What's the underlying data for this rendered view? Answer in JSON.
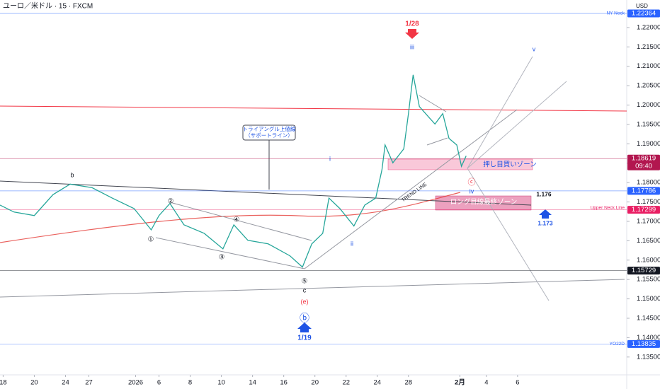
{
  "header": {
    "symbol": "ユーロ／米ドル · 15 · FXCM",
    "currency": "USD"
  },
  "chart_data": {
    "type": "line",
    "color": "#26a69a",
    "grid": false,
    "x": [
      -0.2,
      0.7,
      2.0,
      3.2,
      4.3,
      5.7,
      7.0,
      8.4,
      9.5,
      10.0,
      10.7,
      11.6,
      12.9,
      14.1,
      14.8,
      15.7,
      17.0,
      18.4,
      19.2,
      19.8,
      20.5,
      20.9,
      21.6,
      22.5,
      23.2,
      23.9,
      24.3,
      24.5,
      25.0,
      25.7,
      26.0,
      26.3,
      26.7,
      27.3,
      27.7,
      28.2,
      28.6,
      29.1,
      29.4,
      29.7
    ],
    "values": [
      1.1742,
      1.1724,
      1.1715,
      1.1769,
      1.1796,
      1.1787,
      1.176,
      1.1733,
      1.1678,
      1.1715,
      1.1746,
      1.1691,
      1.1669,
      1.1629,
      1.1691,
      1.1651,
      1.1642,
      1.1611,
      1.1582,
      1.1642,
      1.1669,
      1.176,
      1.1733,
      1.1688,
      1.1742,
      1.176,
      1.1833,
      1.1897,
      1.1851,
      1.1887,
      1.1978,
      1.2078,
      1.1996,
      1.1969,
      1.1951,
      1.1978,
      1.1914,
      1.1897,
      1.1842,
      1.1869
    ],
    "xlim": [
      -0.2,
      40
    ],
    "xticks": [
      {
        "value": 0,
        "label": "18"
      },
      {
        "value": 2,
        "label": "20"
      },
      {
        "value": 4,
        "label": "24"
      },
      {
        "value": 5.5,
        "label": "27"
      },
      {
        "value": 8.5,
        "label": "2026"
      },
      {
        "value": 10,
        "label": "6"
      },
      {
        "value": 12,
        "label": "8"
      },
      {
        "value": 14,
        "label": "10"
      },
      {
        "value": 16,
        "label": "14"
      },
      {
        "value": 18,
        "label": "16"
      },
      {
        "value": 20,
        "label": "20"
      },
      {
        "value": 22,
        "label": "22"
      },
      {
        "value": 24,
        "label": "24"
      },
      {
        "value": 26,
        "label": "28"
      },
      {
        "value": 29.3,
        "label": "2月"
      },
      {
        "value": 31,
        "label": "4"
      },
      {
        "value": 33,
        "label": "6"
      }
    ],
    "ylim": [
      1.1304,
      1.2271
    ],
    "yticks": [
      {
        "value": 1.135,
        "label": "1.13500"
      },
      {
        "value": 1.14,
        "label": "1.14000"
      },
      {
        "value": 1.145,
        "label": "1.14500"
      },
      {
        "value": 1.15,
        "label": "1.15000"
      },
      {
        "value": 1.155,
        "label": "1.15500"
      },
      {
        "value": 1.16,
        "label": "1.16000"
      },
      {
        "value": 1.165,
        "label": "1.16500"
      },
      {
        "value": 1.17,
        "label": "1.17000"
      },
      {
        "value": 1.175,
        "label": "1.17500"
      },
      {
        "value": 1.18,
        "label": "1.18000"
      },
      {
        "value": 1.185,
        "label": "1.18500"
      },
      {
        "value": 1.19,
        "label": "1.19000"
      },
      {
        "value": 1.195,
        "label": "1.19500"
      },
      {
        "value": 1.2,
        "label": "1.20000"
      },
      {
        "value": 1.205,
        "label": "1.20500"
      },
      {
        "value": 1.21,
        "label": "1.21000"
      },
      {
        "value": 1.215,
        "label": "1.21500"
      },
      {
        "value": 1.22,
        "label": "1.22000"
      }
    ],
    "levels": [
      {
        "name": "NY Neck",
        "value": 1.22364,
        "color": "#2962ff"
      },
      {
        "value": 1.18619,
        "time": "09:40",
        "color": "#b2164f"
      },
      {
        "value": 1.17786,
        "color": "#2962ff"
      },
      {
        "name": "Upper Neck Line",
        "value": 1.17299,
        "color": "#e91e63"
      },
      {
        "value": 1.15729,
        "color": "#131722"
      },
      {
        "name": "YO22D",
        "value": 1.13835,
        "color": "#2962ff"
      }
    ],
    "annotations": [
      "1/28",
      "1/19",
      "トライアングル上値線",
      "（サポートライン）",
      "押し目買いゾーン",
      "ロング目線最終ゾーン",
      "TREND LINE",
      "1.176",
      "1.173",
      "b",
      "i",
      "ii",
      "iii",
      "iv",
      "v",
      "c",
      "(e)",
      "ⓑ",
      "ⓒ",
      "①",
      "②",
      "③",
      "④",
      "⑤"
    ]
  }
}
